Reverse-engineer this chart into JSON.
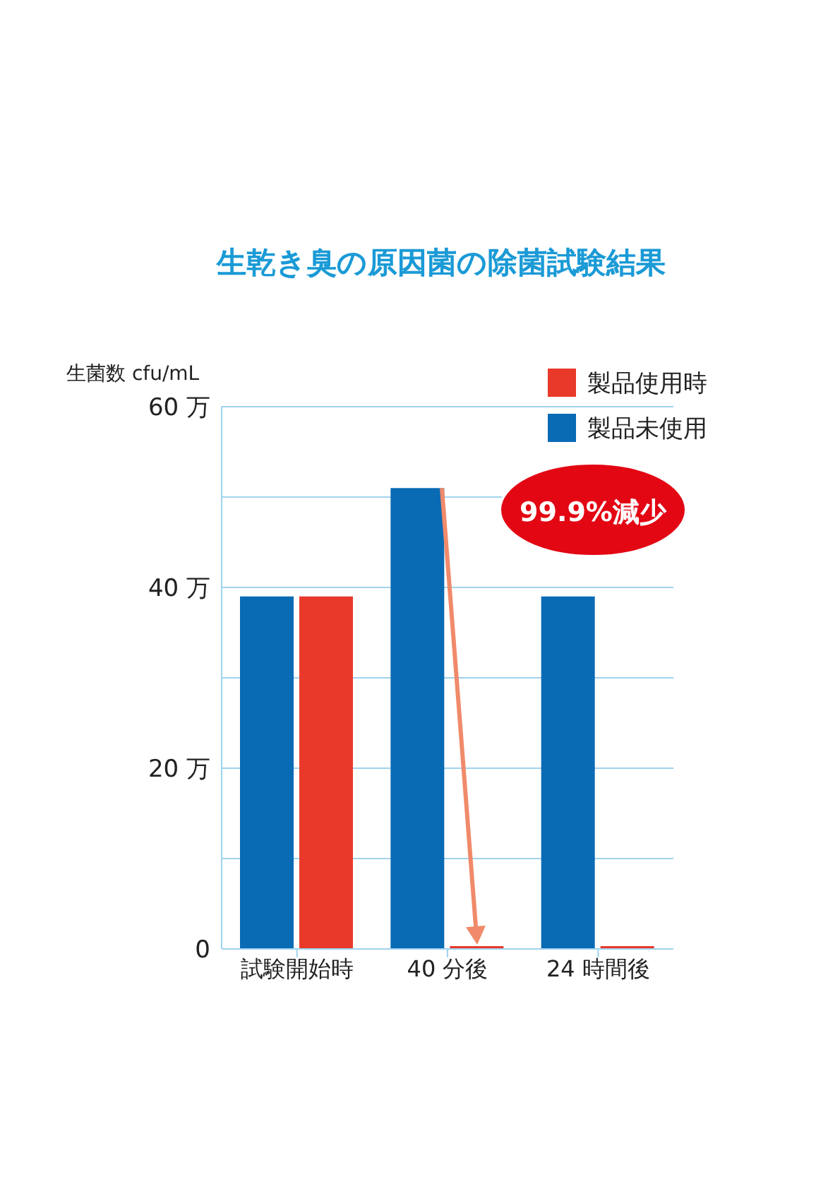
{
  "chart_data": {
    "type": "bar",
    "title": "生乾き臭の原因菌の除菌試験結果",
    "ylabel": "生菌数 cfu/mL",
    "categories": [
      "試験開始時",
      "40 分後",
      "24 時間後"
    ],
    "series": [
      {
        "name": "製品未使用",
        "color": "#0a6bb5",
        "values": [
          39,
          51,
          39
        ]
      },
      {
        "name": "製品使用時",
        "color": "#e8392a",
        "values": [
          39,
          0,
          0
        ]
      }
    ],
    "ylim": [
      0,
      60
    ],
    "yticks": [
      0,
      {
        "value": 10,
        "label": null
      },
      {
        "value": 20,
        "label": "20 万"
      },
      {
        "value": 30,
        "label": null
      },
      {
        "value": 40,
        "label": "40 万"
      },
      {
        "value": 50,
        "label": null
      },
      {
        "value": 60,
        "label": "60 万"
      }
    ],
    "grid": "y",
    "legend": "top right",
    "annotations": [
      "99.9%減少"
    ]
  }
}
